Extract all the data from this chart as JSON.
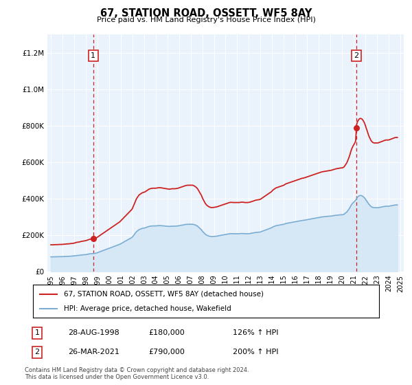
{
  "title": "67, STATION ROAD, OSSETT, WF5 8AY",
  "subtitle": "Price paid vs. HM Land Registry's House Price Index (HPI)",
  "hpi_label": "HPI: Average price, detached house, Wakefield",
  "property_label": "67, STATION ROAD, OSSETT, WF5 8AY (detached house)",
  "hpi_color": "#7aadd4",
  "hpi_fill_color": "#d6e8f5",
  "property_color": "#cc2222",
  "annotation1_date": "28-AUG-1998",
  "annotation1_price": "£180,000",
  "annotation1_hpi": "126% ↑ HPI",
  "annotation2_date": "26-MAR-2021",
  "annotation2_price": "£790,000",
  "annotation2_hpi": "200% ↑ HPI",
  "footer": "Contains HM Land Registry data © Crown copyright and database right 2024.\nThis data is licensed under the Open Government Licence v3.0.",
  "ylim": [
    0,
    1300000
  ],
  "yticks": [
    0,
    200000,
    400000,
    600000,
    800000,
    1000000,
    1200000
  ],
  "background_color": "#ffffff",
  "plot_bg_color": "#eaf3fb",
  "grid_color": "#ffffff",
  "sale1_year": 1998.64,
  "sale1_price": 180000,
  "sale2_year": 2021.21,
  "sale2_price": 790000,
  "hpi_x": [
    1995.0,
    1995.08,
    1995.17,
    1995.25,
    1995.33,
    1995.42,
    1995.5,
    1995.58,
    1995.67,
    1995.75,
    1995.83,
    1995.92,
    1996.0,
    1996.08,
    1996.17,
    1996.25,
    1996.33,
    1996.42,
    1996.5,
    1996.58,
    1996.67,
    1996.75,
    1996.83,
    1996.92,
    1997.0,
    1997.08,
    1997.17,
    1997.25,
    1997.33,
    1997.42,
    1997.5,
    1997.58,
    1997.67,
    1997.75,
    1997.83,
    1997.92,
    1998.0,
    1998.08,
    1998.17,
    1998.25,
    1998.33,
    1998.42,
    1998.5,
    1998.58,
    1998.67,
    1998.75,
    1998.83,
    1998.92,
    1999.0,
    1999.08,
    1999.17,
    1999.25,
    1999.33,
    1999.42,
    1999.5,
    1999.58,
    1999.67,
    1999.75,
    1999.83,
    1999.92,
    2000.0,
    2000.08,
    2000.17,
    2000.25,
    2000.33,
    2000.42,
    2000.5,
    2000.58,
    2000.67,
    2000.75,
    2000.83,
    2000.92,
    2001.0,
    2001.08,
    2001.17,
    2001.25,
    2001.33,
    2001.42,
    2001.5,
    2001.58,
    2001.67,
    2001.75,
    2001.83,
    2001.92,
    2002.0,
    2002.08,
    2002.17,
    2002.25,
    2002.33,
    2002.42,
    2002.5,
    2002.58,
    2002.67,
    2002.75,
    2002.83,
    2002.92,
    2003.0,
    2003.08,
    2003.17,
    2003.25,
    2003.33,
    2003.42,
    2003.5,
    2003.58,
    2003.67,
    2003.75,
    2003.83,
    2003.92,
    2004.0,
    2004.08,
    2004.17,
    2004.25,
    2004.33,
    2004.42,
    2004.5,
    2004.58,
    2004.67,
    2004.75,
    2004.83,
    2004.92,
    2005.0,
    2005.08,
    2005.17,
    2005.25,
    2005.33,
    2005.42,
    2005.5,
    2005.58,
    2005.67,
    2005.75,
    2005.83,
    2005.92,
    2006.0,
    2006.08,
    2006.17,
    2006.25,
    2006.33,
    2006.42,
    2006.5,
    2006.58,
    2006.67,
    2006.75,
    2006.83,
    2006.92,
    2007.0,
    2007.08,
    2007.17,
    2007.25,
    2007.33,
    2007.42,
    2007.5,
    2007.58,
    2007.67,
    2007.75,
    2007.83,
    2007.92,
    2008.0,
    2008.08,
    2008.17,
    2008.25,
    2008.33,
    2008.42,
    2008.5,
    2008.58,
    2008.67,
    2008.75,
    2008.83,
    2008.92,
    2009.0,
    2009.08,
    2009.17,
    2009.25,
    2009.33,
    2009.42,
    2009.5,
    2009.58,
    2009.67,
    2009.75,
    2009.83,
    2009.92,
    2010.0,
    2010.08,
    2010.17,
    2010.25,
    2010.33,
    2010.42,
    2010.5,
    2010.58,
    2010.67,
    2010.75,
    2010.83,
    2010.92,
    2011.0,
    2011.08,
    2011.17,
    2011.25,
    2011.33,
    2011.42,
    2011.5,
    2011.58,
    2011.67,
    2011.75,
    2011.83,
    2011.92,
    2012.0,
    2012.08,
    2012.17,
    2012.25,
    2012.33,
    2012.42,
    2012.5,
    2012.58,
    2012.67,
    2012.75,
    2012.83,
    2012.92,
    2013.0,
    2013.08,
    2013.17,
    2013.25,
    2013.33,
    2013.42,
    2013.5,
    2013.58,
    2013.67,
    2013.75,
    2013.83,
    2013.92,
    2014.0,
    2014.08,
    2014.17,
    2014.25,
    2014.33,
    2014.42,
    2014.5,
    2014.58,
    2014.67,
    2014.75,
    2014.83,
    2014.92,
    2015.0,
    2015.08,
    2015.17,
    2015.25,
    2015.33,
    2015.42,
    2015.5,
    2015.58,
    2015.67,
    2015.75,
    2015.83,
    2015.92,
    2016.0,
    2016.08,
    2016.17,
    2016.25,
    2016.33,
    2016.42,
    2016.5,
    2016.58,
    2016.67,
    2016.75,
    2016.83,
    2016.92,
    2017.0,
    2017.08,
    2017.17,
    2017.25,
    2017.33,
    2017.42,
    2017.5,
    2017.58,
    2017.67,
    2017.75,
    2017.83,
    2017.92,
    2018.0,
    2018.08,
    2018.17,
    2018.25,
    2018.33,
    2018.42,
    2018.5,
    2018.58,
    2018.67,
    2018.75,
    2018.83,
    2018.92,
    2019.0,
    2019.08,
    2019.17,
    2019.25,
    2019.33,
    2019.42,
    2019.5,
    2019.58,
    2019.67,
    2019.75,
    2019.83,
    2019.92,
    2020.0,
    2020.08,
    2020.17,
    2020.25,
    2020.33,
    2020.42,
    2020.5,
    2020.58,
    2020.67,
    2020.75,
    2020.83,
    2020.92,
    2021.0,
    2021.08,
    2021.17,
    2021.25,
    2021.33,
    2021.42,
    2021.5,
    2021.58,
    2021.67,
    2021.75,
    2021.83,
    2021.92,
    2022.0,
    2022.08,
    2022.17,
    2022.25,
    2022.33,
    2022.42,
    2022.5,
    2022.58,
    2022.67,
    2022.75,
    2022.83,
    2022.92,
    2023.0,
    2023.08,
    2023.17,
    2023.25,
    2023.33,
    2023.42,
    2023.5,
    2023.58,
    2023.67,
    2023.75,
    2023.83,
    2023.92,
    2024.0,
    2024.08,
    2024.17,
    2024.25,
    2024.33,
    2024.42,
    2024.5,
    2024.58,
    2024.67,
    2024.75
  ],
  "hpi_y": [
    80000,
    80000,
    80000,
    80000,
    80500,
    80500,
    80500,
    80500,
    81000,
    81000,
    81000,
    81000,
    81500,
    81500,
    82000,
    82000,
    82500,
    82500,
    83000,
    83000,
    83500,
    84000,
    84000,
    84500,
    85000,
    86000,
    87000,
    87500,
    88000,
    88500,
    89000,
    90000,
    90500,
    91000,
    91500,
    92000,
    92500,
    93500,
    94500,
    95500,
    96500,
    97000,
    97500,
    98000,
    98500,
    99000,
    100000,
    101000,
    103000,
    105000,
    107000,
    109000,
    111000,
    113000,
    115000,
    117000,
    119000,
    121000,
    123000,
    125000,
    127000,
    129000,
    131000,
    133000,
    135000,
    137000,
    139000,
    141000,
    143000,
    145000,
    147000,
    149000,
    152000,
    155000,
    158000,
    161000,
    164000,
    167000,
    170000,
    173000,
    176000,
    179000,
    182000,
    185000,
    189000,
    196000,
    203000,
    210000,
    217000,
    222000,
    226000,
    230000,
    232000,
    234000,
    236000,
    237000,
    238000,
    239000,
    241000,
    243000,
    245000,
    247000,
    248000,
    249000,
    249500,
    250000,
    250000,
    250000,
    250000,
    250500,
    251000,
    251500,
    251500,
    251500,
    251000,
    250500,
    250000,
    249500,
    249000,
    248500,
    248000,
    247500,
    247000,
    247500,
    248000,
    248500,
    248500,
    248500,
    248500,
    249000,
    249500,
    250000,
    251000,
    252000,
    253000,
    254000,
    255000,
    256000,
    257000,
    258000,
    258500,
    259000,
    259000,
    259000,
    259000,
    259000,
    259000,
    258000,
    256500,
    254500,
    252000,
    249000,
    244000,
    239000,
    234000,
    229000,
    222000,
    216000,
    210000,
    205000,
    201000,
    198000,
    196000,
    194000,
    193000,
    192000,
    192000,
    192000,
    192500,
    193000,
    193500,
    194000,
    195000,
    196000,
    197000,
    198000,
    199000,
    200000,
    201000,
    202000,
    203000,
    204000,
    205000,
    206000,
    207000,
    207500,
    207500,
    207500,
    207000,
    207000,
    207000,
    207000,
    207000,
    207000,
    207000,
    207500,
    208000,
    208000,
    208000,
    207500,
    207000,
    207000,
    207000,
    207000,
    207500,
    208000,
    209000,
    210000,
    211000,
    212000,
    213000,
    214000,
    214500,
    215000,
    215500,
    216000,
    217000,
    219000,
    221000,
    223000,
    225000,
    227000,
    229000,
    231000,
    233000,
    235000,
    237000,
    239000,
    242000,
    245000,
    247000,
    249000,
    251000,
    252000,
    253000,
    254000,
    255000,
    256000,
    257000,
    258000,
    259000,
    261000,
    263000,
    264000,
    265000,
    266000,
    267000,
    268000,
    269000,
    270000,
    271000,
    272000,
    273000,
    274000,
    275000,
    276000,
    277000,
    278000,
    279000,
    280000,
    280500,
    281000,
    282000,
    283000,
    284000,
    285000,
    286000,
    287000,
    288000,
    289000,
    290000,
    291000,
    292000,
    293000,
    294000,
    295000,
    296000,
    297000,
    298000,
    299000,
    299500,
    300000,
    300500,
    301000,
    301500,
    302000,
    302500,
    303000,
    303500,
    304000,
    305000,
    306000,
    307000,
    308000,
    308500,
    309000,
    309500,
    310000,
    310500,
    311000,
    311000,
    312000,
    314000,
    318000,
    322000,
    327000,
    334000,
    341000,
    350000,
    360000,
    368000,
    375000,
    380000,
    385000,
    392000,
    400000,
    408000,
    413000,
    416000,
    417000,
    416000,
    414000,
    410000,
    405000,
    398000,
    390000,
    382000,
    374000,
    367000,
    361000,
    356000,
    353000,
    351000,
    350000,
    350000,
    350000,
    350000,
    350000,
    351000,
    352000,
    353000,
    354000,
    355000,
    356000,
    357000,
    358000,
    358000,
    358000,
    358000,
    359000,
    360000,
    361000,
    362000,
    363000,
    364000,
    365000,
    365000,
    365000,
    315000,
    316000,
    317000,
    318000,
    319000,
    320000,
    321000,
    322000,
    323000,
    324000
  ]
}
